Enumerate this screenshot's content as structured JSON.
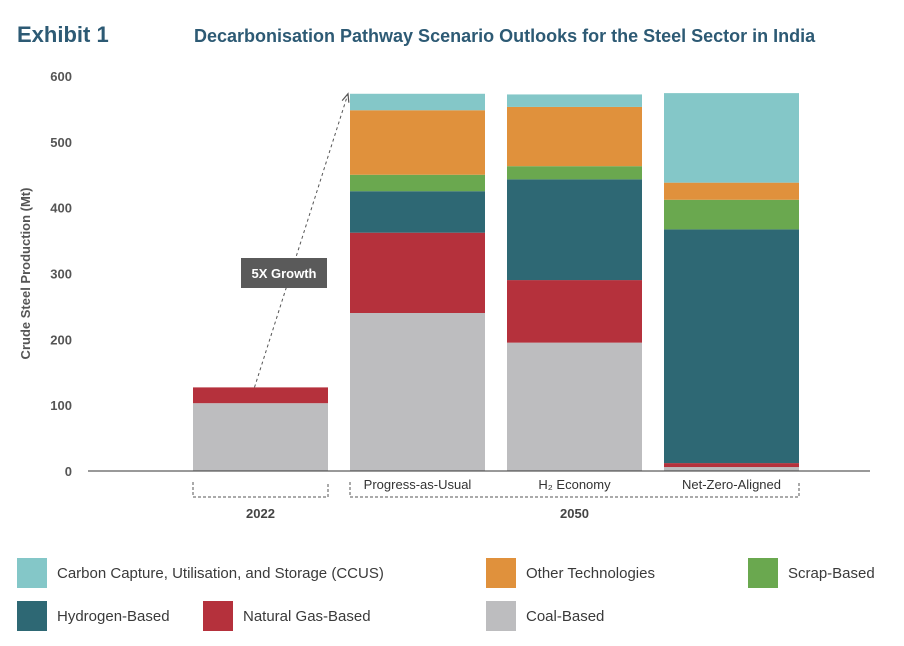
{
  "header": {
    "exhibit": "Exhibit 1",
    "title": "Decarbonisation Pathway Scenario Outlooks for the Steel Sector in India"
  },
  "chart_data": {
    "type": "bar",
    "stacked": true,
    "ylabel": "Crude Steel Production (Mt)",
    "ylim": [
      0,
      600
    ],
    "yticks": [
      0,
      100,
      200,
      300,
      400,
      500,
      600
    ],
    "categories": [
      "",
      "Progress-as-Usual",
      "H₂ Economy",
      "Net-Zero-Aligned"
    ],
    "groups": [
      {
        "label": "2022",
        "bars": [
          0
        ]
      },
      {
        "label": "2050",
        "bars": [
          1,
          2,
          3
        ]
      }
    ],
    "series": [
      {
        "name": "Coal-Based",
        "color": "#bdbdbf",
        "values": [
          103,
          240,
          195,
          6
        ]
      },
      {
        "name": "Natural Gas-Based",
        "color": "#b5313c",
        "values": [
          24,
          122,
          95,
          6
        ]
      },
      {
        "name": "Hydrogen-Based",
        "color": "#2e6874",
        "values": [
          0,
          63,
          153,
          355
        ]
      },
      {
        "name": "Scrap-Based",
        "color": "#6aa84f",
        "values": [
          0,
          25,
          20,
          45
        ]
      },
      {
        "name": "Other Technologies",
        "color": "#e0913c",
        "values": [
          0,
          98,
          90,
          26
        ]
      },
      {
        "name": "Carbon Capture, Utilisation, and Storage (CCUS)",
        "color": "#84c7c8",
        "values": [
          0,
          25,
          19,
          136
        ]
      }
    ],
    "annotation": {
      "text": "5X Growth",
      "from_bar": 0,
      "to_bar": 1
    }
  },
  "legend": [
    {
      "label": "Carbon Capture, Utilisation, and Storage (CCUS)",
      "color": "#84c7c8"
    },
    {
      "label": "Other Technologies",
      "color": "#e0913c"
    },
    {
      "label": "Scrap-Based",
      "color": "#6aa84f"
    },
    {
      "label": "Hydrogen-Based",
      "color": "#2e6874"
    },
    {
      "label": "Natural Gas-Based",
      "color": "#b5313c"
    },
    {
      "label": "Coal-Based",
      "color": "#bdbdbf"
    }
  ]
}
